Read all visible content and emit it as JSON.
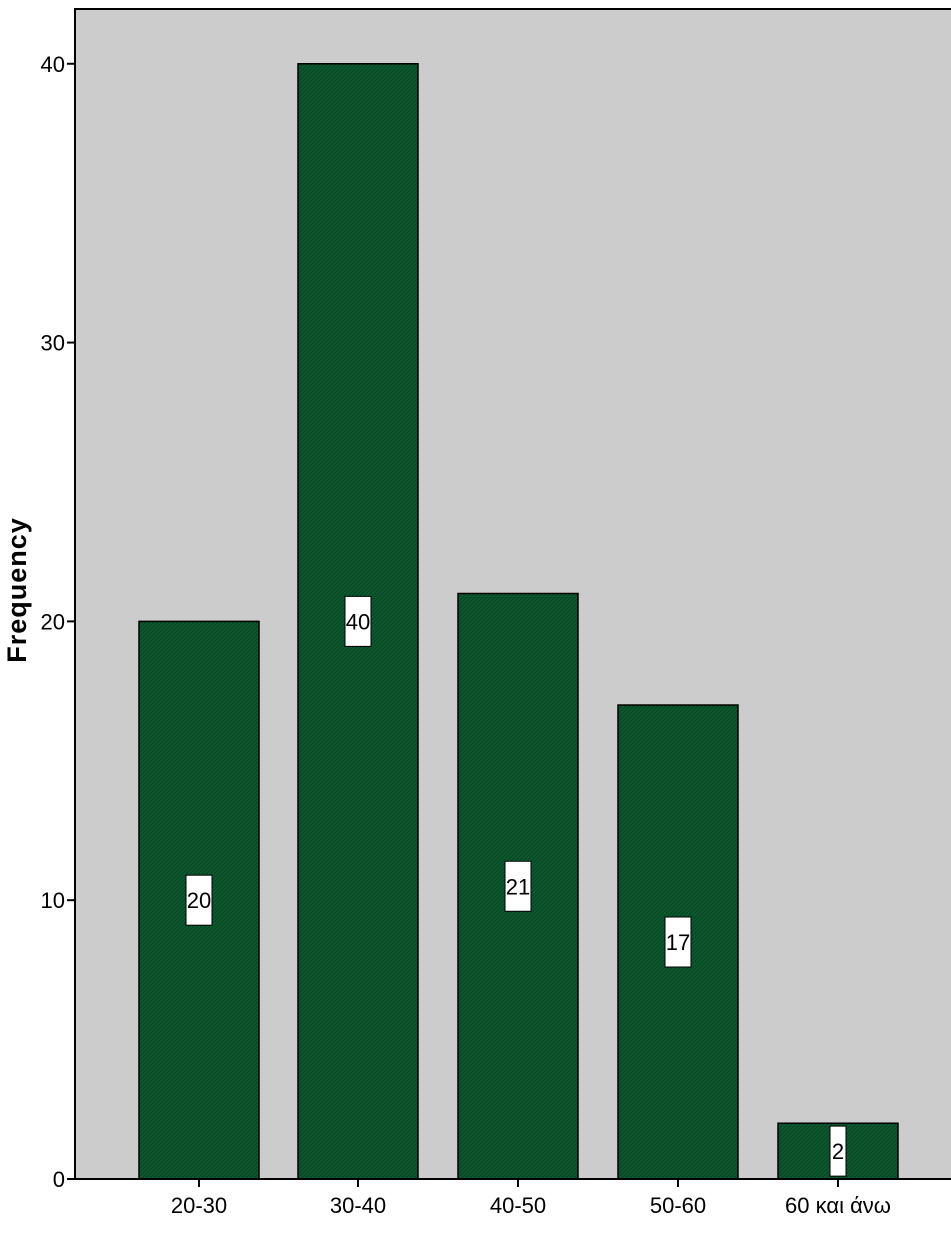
{
  "colors": {
    "plot_background": "#cccccc",
    "bar_fill": "#0c5a2f",
    "bar_stroke": "#000000",
    "label_box": "#ffffff",
    "axis": "#000000"
  },
  "chart_data": {
    "type": "bar",
    "title": "",
    "xlabel": "",
    "ylabel": "Frequency",
    "categories": [
      "20-30",
      "30-40",
      "40-50",
      "50-60",
      "60 και άνω"
    ],
    "values": [
      20,
      40,
      21,
      17,
      2
    ],
    "data_labels": [
      "20",
      "40",
      "21",
      "17",
      "2"
    ],
    "ylim": [
      0,
      42
    ],
    "yticks": [
      0,
      10,
      20,
      30,
      40
    ],
    "grid": false,
    "legend": "none"
  }
}
